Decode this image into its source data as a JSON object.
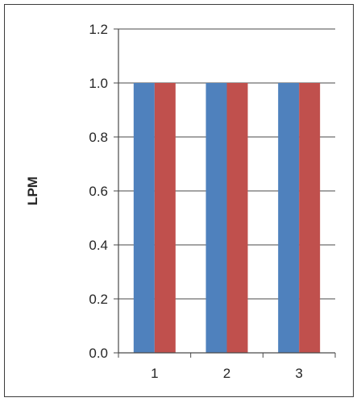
{
  "chart_data": {
    "type": "bar",
    "title": "",
    "xlabel": "",
    "ylabel": "LPM",
    "categories": [
      "1",
      "2",
      "3"
    ],
    "series": [
      {
        "values": [
          1.0,
          1.0,
          1.0
        ],
        "color": "#4f81bd"
      },
      {
        "values": [
          1.0,
          1.0,
          1.0
        ],
        "color": "#c0504d"
      }
    ],
    "ylim": [
      0,
      1.2
    ],
    "yticks": [
      0.0,
      0.2,
      0.4,
      0.6,
      0.8,
      1.0,
      1.2
    ],
    "ytick_labels": [
      "0.0",
      "0.2",
      "0.4",
      "0.6",
      "0.8",
      "1.0",
      "1.2"
    ],
    "grid": true,
    "legend": "none"
  }
}
